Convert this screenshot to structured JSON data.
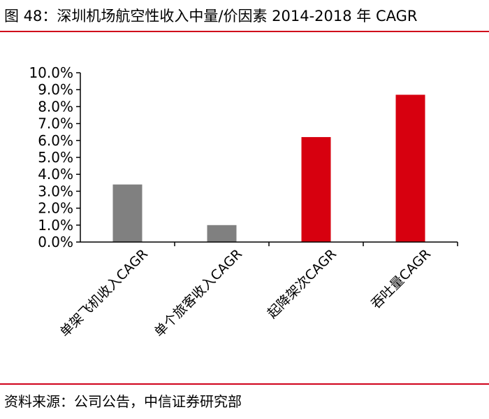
{
  "header": {
    "title": "图 48：深圳机场航空性收入中量/价因素 2014-2018 年 CAGR"
  },
  "footer": {
    "source": "资料来源：公司公告，中信证券研究部"
  },
  "colors": {
    "accent": "#d0021b",
    "gray_bar": "#808080",
    "red_bar": "#d7000f"
  },
  "chart_data": {
    "type": "bar",
    "title": "",
    "xlabel": "",
    "ylabel": "",
    "categories": [
      "单架飞机收入CAGR",
      "单个旅客收入CAGR",
      "起降架次CAGR",
      "吞吐量CAGR"
    ],
    "values": [
      3.4,
      1.0,
      6.2,
      8.7
    ],
    "bar_colors": [
      "#808080",
      "#808080",
      "#d7000f",
      "#d7000f"
    ],
    "ylim": [
      0,
      10
    ],
    "yticks": [
      "0.0%",
      "1.0%",
      "2.0%",
      "3.0%",
      "4.0%",
      "5.0%",
      "6.0%",
      "7.0%",
      "8.0%",
      "9.0%",
      "10.0%"
    ],
    "grid": false,
    "legend": "none"
  }
}
